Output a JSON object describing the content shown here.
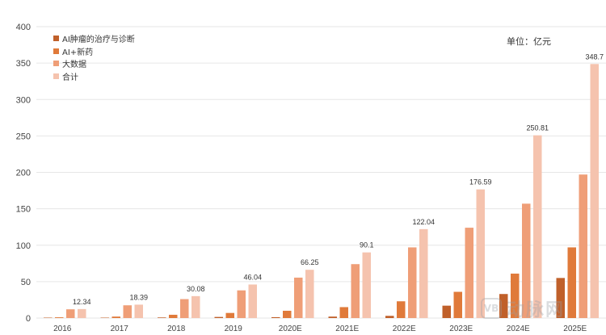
{
  "unit_note": "单位：亿元",
  "colors": {
    "grid": "#e6e6e6",
    "axis_text": "#444444",
    "label_text": "#333333"
  },
  "watermark": {
    "badge": "VB",
    "text": "动脉网"
  },
  "chart_data": {
    "type": "bar",
    "title": "",
    "xlabel": "",
    "ylabel": "",
    "ylim": [
      0,
      400
    ],
    "yticks": [
      0,
      50,
      100,
      150,
      200,
      250,
      300,
      350,
      400
    ],
    "grid": true,
    "legend_position": "top-left",
    "categories": [
      "2016",
      "2017",
      "2018",
      "2019",
      "2020E",
      "2021E",
      "2022E",
      "2023E",
      "2024E",
      "2025E"
    ],
    "series": [
      {
        "name": "AI肿瘤的治疗与诊断",
        "color": "#c0602a",
        "values": [
          0.3,
          0.5,
          0.8,
          1.5,
          1.2,
          2.0,
          3.0,
          17.0,
          33.0,
          55.0
        ]
      },
      {
        "name": "AI+新药",
        "color": "#e07a3a",
        "values": [
          1.0,
          2.0,
          4.5,
          7.0,
          10.0,
          15.0,
          23.0,
          36.0,
          61.0,
          97.0
        ]
      },
      {
        "name": "大数据",
        "color": "#ef9e77",
        "values": [
          12.0,
          17.5,
          26.0,
          38.0,
          55.5,
          74.0,
          97.0,
          124.0,
          157.0,
          197.0
        ]
      },
      {
        "name": "合计",
        "color": "#f5c3ae",
        "values": [
          12.34,
          18.39,
          30.08,
          46.04,
          66.25,
          90.1,
          122.04,
          176.59,
          250.81,
          348.7
        ],
        "labels": [
          "12.34",
          "18.39",
          "30.08",
          "46.04",
          "66.25",
          "90.1",
          "122.04",
          "176.59",
          "250.81",
          "348.7"
        ]
      }
    ]
  }
}
